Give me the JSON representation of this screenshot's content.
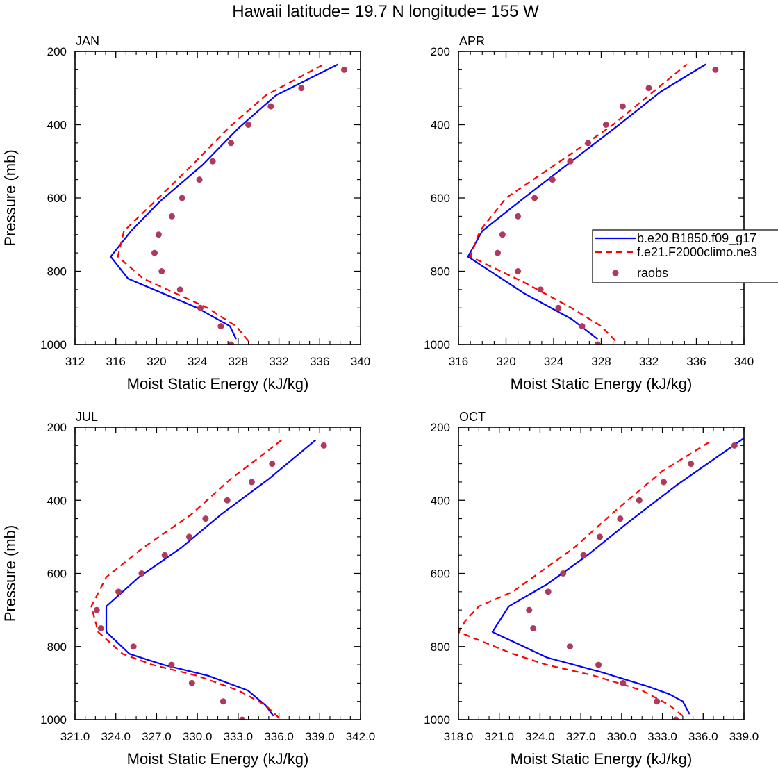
{
  "figure_title": "Hawaii  latitude= 19.7 N longitude= 155 W",
  "legend": {
    "entries": [
      {
        "label": "b.e20.B1850.f09_g17",
        "color": "#0000ff",
        "style": "solid"
      },
      {
        "label": "f.e21.F2000climo.ne3",
        "color": "#ff0000",
        "style": "dashed"
      },
      {
        "label": "raobs",
        "color": "#b03a5b",
        "style": "marker"
      }
    ]
  },
  "chart_data": [
    {
      "type": "line",
      "panel_label": "JAN",
      "xlabel": "Moist Static Energy (kJ/kg)",
      "ylabel": "Pressure (mb)",
      "xlim": [
        312,
        340
      ],
      "ylim": [
        200,
        1000
      ],
      "xticks": [
        "312",
        "316",
        "320",
        "324",
        "328",
        "332",
        "336",
        "340"
      ],
      "yticks": [
        "200",
        "400",
        "600",
        "800",
        "1000"
      ],
      "series": [
        {
          "name": "b.e20.B1850.f09_g17",
          "x": [
            327.8,
            327.2,
            324.0,
            317.2,
            315.5,
            317.5,
            320.3,
            324.5,
            328.0,
            331.7,
            337.8
          ],
          "y": [
            985,
            950,
            900,
            820,
            760,
            690,
            610,
            510,
            410,
            320,
            235
          ]
        },
        {
          "name": "f.e21.F2000climo.ne3",
          "x": [
            329.0,
            327.8,
            325.0,
            318.7,
            316.2,
            316.8,
            319.8,
            323.5,
            327.0,
            330.7,
            336.4
          ],
          "y": [
            990,
            950,
            900,
            820,
            760,
            690,
            610,
            510,
            410,
            320,
            235
          ]
        },
        {
          "name": "raobs",
          "x": [
            327.3,
            326.3,
            324.3,
            322.3,
            320.5,
            319.8,
            320.2,
            321.5,
            322.5,
            324.2,
            325.5,
            327.3,
            329.0,
            331.2,
            334.2,
            338.4
          ],
          "y": [
            1000,
            950,
            900,
            850,
            800,
            750,
            700,
            650,
            600,
            550,
            500,
            450,
            400,
            350,
            300,
            250
          ]
        }
      ]
    },
    {
      "type": "line",
      "panel_label": "APR",
      "xlabel": "Moist Static Energy (kJ/kg)",
      "ylabel": "",
      "xlim": [
        316,
        340
      ],
      "ylim": [
        200,
        1000
      ],
      "xticks": [
        "316",
        "320",
        "324",
        "328",
        "332",
        "336",
        "340"
      ],
      "yticks": [
        "200",
        "400",
        "600",
        "800",
        "1000"
      ],
      "series": [
        {
          "name": "b.e20.B1850.f09_g17",
          "x": [
            327.7,
            325.5,
            321.5,
            316.8,
            318.0,
            321.5,
            325.5,
            329.5,
            333.0,
            336.8
          ],
          "y": [
            985,
            930,
            860,
            760,
            690,
            600,
            500,
            400,
            310,
            235
          ]
        },
        {
          "name": "f.e21.F2000climo.ne3",
          "x": [
            329.2,
            328.0,
            325.5,
            321.5,
            317.0,
            317.8,
            320.0,
            325.0,
            329.0,
            332.0,
            335.2
          ],
          "y": [
            990,
            950,
            900,
            830,
            760,
            690,
            600,
            490,
            400,
            320,
            235
          ]
        },
        {
          "name": "raobs",
          "x": [
            327.7,
            326.4,
            324.4,
            322.9,
            321.0,
            319.3,
            319.7,
            321.0,
            322.4,
            323.9,
            325.4,
            326.9,
            328.4,
            329.8,
            332.0,
            337.6
          ],
          "y": [
            1000,
            950,
            900,
            850,
            800,
            750,
            700,
            650,
            600,
            550,
            500,
            450,
            400,
            350,
            300,
            250
          ]
        }
      ]
    },
    {
      "type": "line",
      "panel_label": "JUL",
      "xlabel": "Moist Static Energy (kJ/kg)",
      "ylabel": "Pressure (mb)",
      "xlim": [
        321,
        342
      ],
      "ylim": [
        200,
        1000
      ],
      "xticks": [
        "321.0",
        "324.0",
        "327.0",
        "330.0",
        "333.0",
        "336.0",
        "339.0",
        "342.0"
      ],
      "yticks": [
        "200",
        "400",
        "600",
        "800",
        "1000"
      ],
      "series": [
        {
          "name": "b.e20.B1850.f09_g17",
          "x": [
            335.6,
            335.0,
            333.7,
            330.8,
            327.5,
            325.0,
            323.3,
            323.3,
            325.7,
            328.8,
            331.7,
            335.3,
            338.7
          ],
          "y": [
            990,
            960,
            920,
            880,
            850,
            820,
            760,
            690,
            610,
            530,
            440,
            340,
            235
          ]
        },
        {
          "name": "f.e21.F2000climo.ne3",
          "x": [
            336.0,
            335.0,
            333.0,
            330.0,
            326.7,
            324.5,
            322.7,
            322.2,
            323.3,
            326.0,
            329.5,
            332.5,
            335.0,
            336.2
          ],
          "y": [
            995,
            960,
            920,
            880,
            850,
            820,
            760,
            690,
            610,
            530,
            440,
            340,
            270,
            235
          ]
        },
        {
          "name": "raobs",
          "x": [
            333.3,
            331.9,
            329.6,
            328.1,
            325.3,
            322.9,
            322.6,
            324.2,
            325.9,
            327.6,
            329.4,
            330.6,
            332.2,
            334.0,
            335.5,
            339.3
          ],
          "y": [
            1000,
            950,
            900,
            850,
            800,
            750,
            700,
            650,
            600,
            550,
            500,
            450,
            400,
            350,
            300,
            250
          ]
        }
      ]
    },
    {
      "type": "line",
      "panel_label": "OCT",
      "xlabel": "Moist Static Energy (kJ/kg)",
      "ylabel": "",
      "xlim": [
        318,
        339
      ],
      "ylim": [
        200,
        1000
      ],
      "xticks": [
        "318.0",
        "321.0",
        "324.0",
        "327.0",
        "330.0",
        "333.0",
        "336.0",
        "339.0"
      ],
      "yticks": [
        "200",
        "400",
        "600",
        "800",
        "1000"
      ],
      "series": [
        {
          "name": "b.e20.B1850.f09_g17",
          "x": [
            335.0,
            334.5,
            333.5,
            332.0,
            328.5,
            324.5,
            320.5,
            321.7,
            324.5,
            327.5,
            330.5,
            334.0,
            339.0
          ],
          "y": [
            985,
            950,
            930,
            910,
            870,
            830,
            760,
            690,
            630,
            550,
            460,
            360,
            230
          ]
        },
        {
          "name": "f.e21.F2000climo.ne3",
          "x": [
            334.5,
            333.5,
            331.5,
            328.0,
            324.5,
            322.0,
            318.0,
            318.5,
            319.5,
            322.0,
            326.5,
            329.5,
            333.0,
            336.7
          ],
          "y": [
            990,
            960,
            920,
            880,
            850,
            820,
            760,
            730,
            690,
            650,
            530,
            430,
            320,
            235
          ]
        },
        {
          "name": "raobs",
          "x": [
            334.0,
            332.6,
            330.1,
            328.3,
            326.2,
            323.5,
            323.2,
            324.6,
            325.7,
            327.2,
            328.4,
            329.9,
            331.3,
            333.1,
            335.1,
            338.3
          ],
          "y": [
            1000,
            950,
            900,
            850,
            800,
            750,
            700,
            650,
            600,
            550,
            500,
            450,
            400,
            350,
            300,
            250
          ]
        }
      ]
    }
  ]
}
